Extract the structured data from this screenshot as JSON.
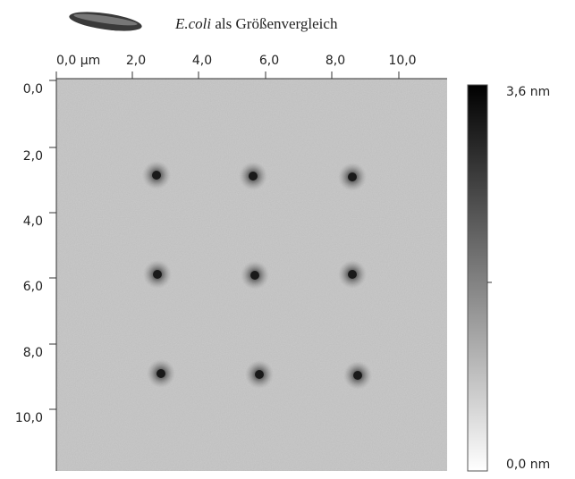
{
  "title": {
    "species": "E.coli",
    "text": "als Größenvergleich"
  },
  "x_axis": {
    "ticks": [
      "0,0 µm",
      "2,0",
      "4,0",
      "6,0",
      "8,0",
      "10,0"
    ]
  },
  "y_axis": {
    "ticks": [
      "0,0",
      "2,0",
      "4,0",
      "6,0",
      "8,0",
      "10,0"
    ]
  },
  "colorbar": {
    "max_label": "3,6 nm",
    "min_label": "0,0 nm"
  }
}
